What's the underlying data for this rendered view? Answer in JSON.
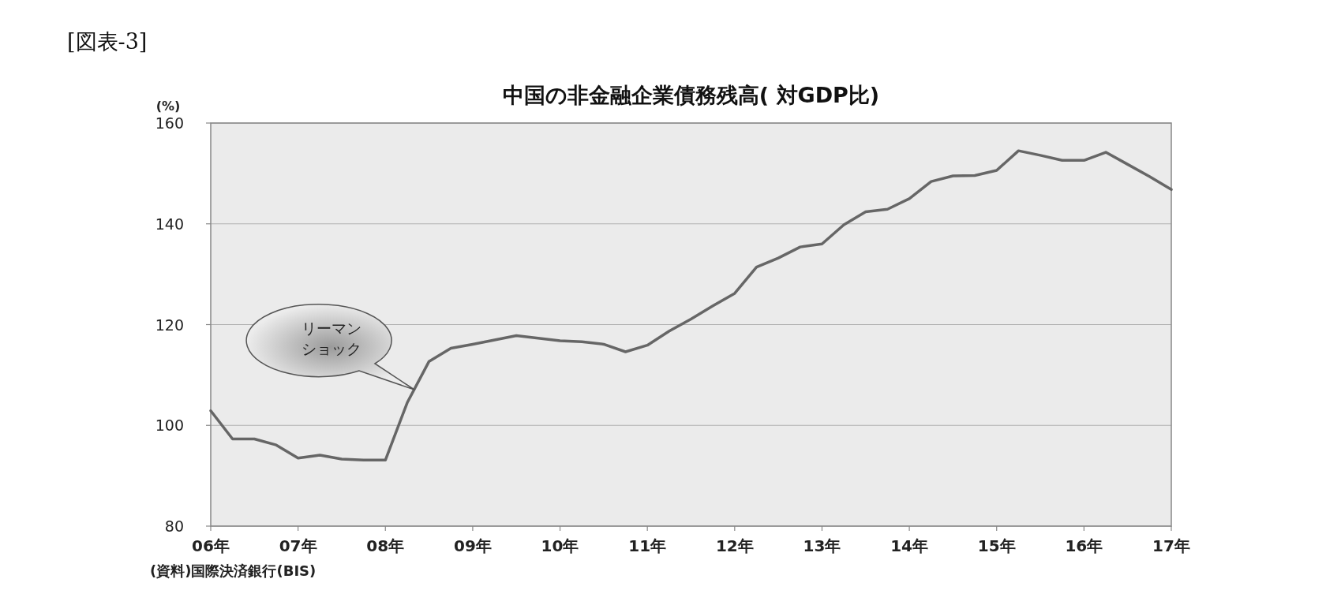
{
  "chart_data": {
    "type": "line",
    "title": "中国の非金融企業債務残高( 対GDP比)",
    "ylabel": "(%)",
    "annotations": [
      "[図表-3]",
      "(資料)国際決済銀行(BIS)",
      "リーマン",
      "ショック"
    ],
    "x": [
      "2006-01",
      "2006-04",
      "2006-07",
      "2006-10",
      "2007-01",
      "2007-04",
      "2007-07",
      "2007-10",
      "2008-01",
      "2008-04",
      "2008-07",
      "2008-10",
      "2009-01",
      "2009-07",
      "2010-01",
      "2010-04",
      "2010-07",
      "2010-10",
      "2011-01",
      "2011-04",
      "2011-07",
      "2011-10",
      "2012-01",
      "2012-04",
      "2012-07",
      "2012-10",
      "2013-01",
      "2013-04",
      "2013-07",
      "2013-10",
      "2014-01",
      "2014-04",
      "2014-07",
      "2014-10",
      "2015-01",
      "2015-04",
      "2015-07",
      "2015-10",
      "2016-01",
      "2016-04",
      "2016-07",
      "2016-10",
      "2017-01"
    ],
    "series": [
      {
        "color": "#666666",
        "values": [
          102.9,
          97.3,
          97.3,
          96.1,
          93.5,
          94.1,
          93.3,
          93.1,
          93.1,
          104.5,
          112.7,
          115.3,
          116.1,
          117.8,
          116.8,
          116.6,
          116.1,
          114.6,
          115.9,
          118.7,
          121.1,
          123.7,
          126.2,
          131.4,
          133.2,
          135.4,
          136.0,
          139.8,
          142.4,
          142.9,
          145.0,
          148.4,
          149.5,
          149.6,
          150.6,
          154.5,
          153.6,
          152.6,
          152.6,
          154.2,
          151.8,
          149.4,
          146.8
        ]
      }
    ],
    "xlim": [
      "2006-01",
      "2017-01"
    ],
    "xticks": [
      {
        "value": "2006",
        "label": "06年"
      },
      {
        "value": "2007",
        "label": "07年"
      },
      {
        "value": "2008",
        "label": "08年"
      },
      {
        "value": "2009",
        "label": "09年"
      },
      {
        "value": "2010",
        "label": "10年"
      },
      {
        "value": "2011",
        "label": "11年"
      },
      {
        "value": "2012",
        "label": "12年"
      },
      {
        "value": "2013",
        "label": "13年"
      },
      {
        "value": "2014",
        "label": "14年"
      },
      {
        "value": "2015",
        "label": "15年"
      },
      {
        "value": "2016",
        "label": "16年"
      },
      {
        "value": "2017",
        "label": "17年"
      }
    ],
    "ylim": [
      80,
      160
    ],
    "yticks": [
      80,
      100,
      120,
      140,
      160
    ],
    "grid": "y",
    "marker": "none",
    "line_style": "solid",
    "legend": false
  }
}
